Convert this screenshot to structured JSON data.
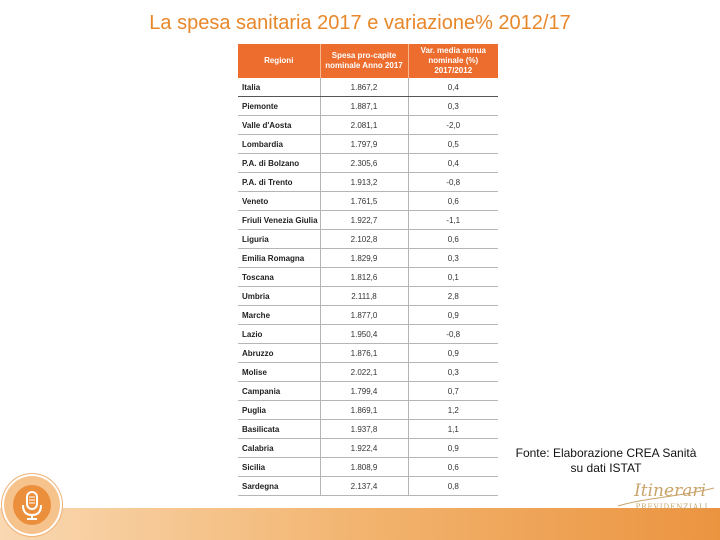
{
  "title": "La spesa sanitaria 2017 e variazione% 2012/17",
  "table": {
    "headers": [
      "Regioni",
      "Spesa pro-capite nominale Anno 2017",
      "Var. media annua nominale (%) 2017/2012"
    ],
    "rows": [
      {
        "region": "Italia",
        "spend": "1.867,2",
        "var": "0,4"
      },
      {
        "region": "Piemonte",
        "spend": "1.887,1",
        "var": "0,3"
      },
      {
        "region": "Valle d'Aosta",
        "spend": "2.081,1",
        "var": "-2,0"
      },
      {
        "region": "Lombardia",
        "spend": "1.797,9",
        "var": "0,5"
      },
      {
        "region": "P.A. di Bolzano",
        "spend": "2.305,6",
        "var": "0,4"
      },
      {
        "region": "P.A. di Trento",
        "spend": "1.913,2",
        "var": "-0,8"
      },
      {
        "region": "Veneto",
        "spend": "1.761,5",
        "var": "0,6"
      },
      {
        "region": "Friuli Venezia Giulia",
        "spend": "1.922,7",
        "var": "-1,1"
      },
      {
        "region": "Liguria",
        "spend": "2.102,8",
        "var": "0,6"
      },
      {
        "region": "Emilia Romagna",
        "spend": "1.829,9",
        "var": "0,3"
      },
      {
        "region": "Toscana",
        "spend": "1.812,6",
        "var": "0,1"
      },
      {
        "region": "Umbria",
        "spend": "2.111,8",
        "var": "2,8"
      },
      {
        "region": "Marche",
        "spend": "1.877,0",
        "var": "0,9"
      },
      {
        "region": "Lazio",
        "spend": "1.950,4",
        "var": "-0,8"
      },
      {
        "region": "Abruzzo",
        "spend": "1.876,1",
        "var": "0,9"
      },
      {
        "region": "Molise",
        "spend": "2.022,1",
        "var": "0,3"
      },
      {
        "region": "Campania",
        "spend": "1.799,4",
        "var": "0,7"
      },
      {
        "region": "Puglia",
        "spend": "1.869,1",
        "var": "1,2"
      },
      {
        "region": "Basilicata",
        "spend": "1.937,8",
        "var": "1,1"
      },
      {
        "region": "Calabria",
        "spend": "1.922,4",
        "var": "0,9"
      },
      {
        "region": "Sicilia",
        "spend": "1.808,9",
        "var": "0,6"
      },
      {
        "region": "Sardegna",
        "spend": "2.137,4",
        "var": "0,8"
      }
    ]
  },
  "source": {
    "line1": "Fonte: Elaborazione CREA Sanità",
    "line2": "su dati ISTAT"
  },
  "logo": {
    "script": "Itinerari",
    "caption": "PREVIDENZIALI"
  },
  "colors": {
    "accent": "#ec6d2e",
    "title": "#e8872a"
  },
  "icons": {
    "mic": "microphone-icon"
  }
}
